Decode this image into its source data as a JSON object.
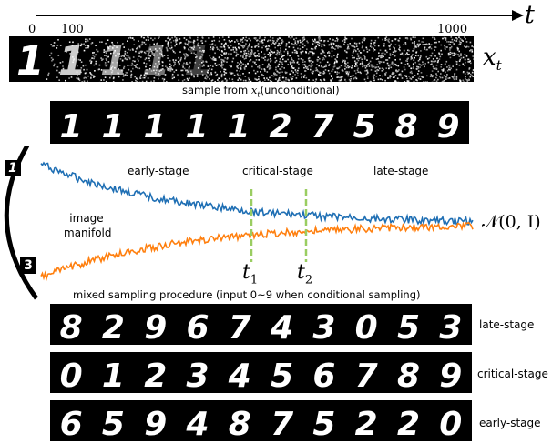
{
  "time_axis": {
    "symbol": "t",
    "ticks": [
      "0",
      "100",
      "1000"
    ]
  },
  "forward": {
    "label": "x",
    "label_sub": "t",
    "digit_glyph": "1"
  },
  "unconditional": {
    "caption": "sample from",
    "caption_math": "x",
    "caption_math_sub": "t",
    "caption_suffix": "(unconditional)",
    "digits": [
      "1",
      "1",
      "1",
      "1",
      "1",
      "2",
      "7",
      "5",
      "8",
      "9"
    ]
  },
  "trajectory": {
    "stages": [
      "early-stage",
      "critical-stage",
      "late-stage"
    ],
    "manifold_label_line1": "image",
    "manifold_label_line2": "manifold",
    "top_digit": "1",
    "bottom_digit": "3",
    "target_label": "𝒩(0, I)",
    "markers": [
      {
        "symbol": "t",
        "sub": "1"
      },
      {
        "symbol": "t",
        "sub": "2"
      }
    ],
    "colors": {
      "upper": "#1f6fb4",
      "lower": "#ff7f0e",
      "marker": "#9acd61"
    }
  },
  "mixed": {
    "caption": "mixed sampling procedure (input 0~9 when conditional sampling)",
    "rows": [
      {
        "label": "late-stage",
        "digits": [
          "8",
          "2",
          "9",
          "6",
          "7",
          "4",
          "3",
          "0",
          "5",
          "3"
        ]
      },
      {
        "label": "critical-stage",
        "digits": [
          "0",
          "1",
          "2",
          "3",
          "4",
          "5",
          "6",
          "7",
          "8",
          "9"
        ]
      },
      {
        "label": "early-stage",
        "digits": [
          "6",
          "5",
          "9",
          "4",
          "8",
          "7",
          "5",
          "2",
          "2",
          "0"
        ]
      }
    ]
  }
}
